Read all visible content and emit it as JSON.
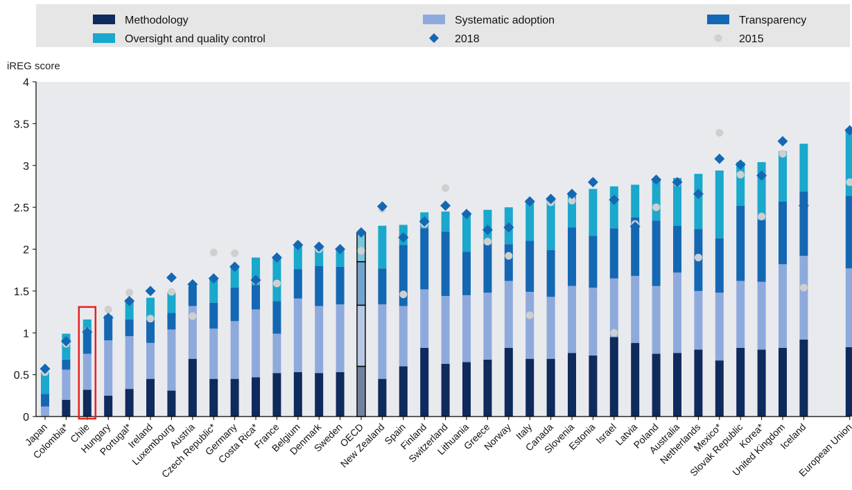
{
  "chart_data": {
    "type": "bar",
    "stacked": true,
    "ylabel": "iREG score",
    "ylim": [
      0,
      4
    ],
    "yticks": [
      0,
      0.5,
      1,
      1.5,
      2,
      2.5,
      3,
      3.5,
      4
    ],
    "ytick_labels": [
      "0",
      "0.5",
      "1",
      "1.5",
      "2",
      "2.5",
      "3",
      "3.5",
      "4"
    ],
    "grid": false,
    "legend_placement": "top",
    "categories": [
      "Japan",
      "Colombia*",
      "Chile",
      "Hungary",
      "Portugal*",
      "Ireland",
      "Luxembourg",
      "Austria",
      "Czech Republic*",
      "Germany",
      "Costa Rica*",
      "France",
      "Belgium",
      "Denmark",
      "Sweden",
      "OECD",
      "New Zealand",
      "Spain",
      "Finland",
      "Switzerland",
      "Lithuania",
      "Greece",
      "Norway",
      "Italy",
      "Canada",
      "Slovenia",
      "Estonia",
      "Israel",
      "Latvia",
      "Poland",
      "Australia",
      "Netherlands",
      "Mexico*",
      "Slovak Republic",
      "Korea*",
      "United Kingdom",
      "Iceland",
      "European Union"
    ],
    "highlighted_category": "Chile",
    "emphasized_category": "OECD",
    "series": [
      {
        "name": "Methodology",
        "color": "#0f2a5c",
        "values": [
          0.0,
          0.2,
          0.32,
          0.25,
          0.33,
          0.45,
          0.31,
          0.69,
          0.45,
          0.45,
          0.47,
          0.52,
          0.53,
          0.52,
          0.53,
          0.6,
          0.45,
          0.6,
          0.82,
          0.63,
          0.65,
          0.68,
          0.82,
          0.69,
          0.69,
          0.76,
          0.73,
          0.95,
          0.88,
          0.75,
          0.76,
          0.8,
          0.67,
          0.82,
          0.8,
          0.82,
          0.92,
          0.83
        ]
      },
      {
        "name": "Systematic adoption",
        "color": "#8eaadc",
        "values": [
          0.12,
          0.36,
          0.43,
          0.66,
          0.63,
          0.43,
          0.73,
          0.63,
          0.6,
          0.69,
          0.81,
          0.47,
          0.88,
          0.8,
          0.81,
          0.73,
          0.89,
          0.72,
          0.7,
          0.81,
          0.8,
          0.8,
          0.8,
          0.8,
          0.74,
          0.8,
          0.81,
          0.7,
          0.8,
          0.81,
          0.96,
          0.7,
          0.81,
          0.8,
          0.81,
          1.0,
          1.0,
          0.94
        ]
      },
      {
        "name": "Transparency",
        "color": "#1468b3",
        "values": [
          0.15,
          0.12,
          0.3,
          0.26,
          0.2,
          0.28,
          0.2,
          0.24,
          0.31,
          0.4,
          0.29,
          0.39,
          0.35,
          0.48,
          0.45,
          0.52,
          0.43,
          0.73,
          0.73,
          0.77,
          0.52,
          0.58,
          0.44,
          0.61,
          0.56,
          0.7,
          0.62,
          0.6,
          0.7,
          0.78,
          0.56,
          0.74,
          0.65,
          0.9,
          0.74,
          0.75,
          0.77,
          0.87
        ]
      },
      {
        "name": "Oversight and quality control",
        "color": "#1aa8cc",
        "values": [
          0.26,
          0.31,
          0.11,
          0.04,
          0.24,
          0.26,
          0.24,
          0.0,
          0.29,
          0.24,
          0.33,
          0.53,
          0.3,
          0.22,
          0.21,
          0.35,
          0.51,
          0.24,
          0.19,
          0.24,
          0.47,
          0.41,
          0.44,
          0.47,
          0.61,
          0.41,
          0.56,
          0.5,
          0.39,
          0.49,
          0.57,
          0.66,
          0.81,
          0.52,
          0.69,
          0.6,
          0.57,
          0.8
        ]
      }
    ],
    "markers": [
      {
        "name": "2018",
        "color": "#1468b3",
        "shape": "diamond",
        "values": [
          0.57,
          0.9,
          1.01,
          1.18,
          1.38,
          1.5,
          1.66,
          1.58,
          1.65,
          1.79,
          1.63,
          1.9,
          2.05,
          2.03,
          2.0,
          2.2,
          2.51,
          2.14,
          2.33,
          2.52,
          2.42,
          2.23,
          2.26,
          2.57,
          2.6,
          2.66,
          2.8,
          2.59,
          2.27,
          2.83,
          2.8,
          2.66,
          3.08,
          3.01,
          2.88,
          3.29,
          2.52,
          3.42
        ]
      },
      {
        "name": "2015",
        "color": "#cfcfcf",
        "shape": "circle",
        "values": [
          0.53,
          0.87,
          1.02,
          1.28,
          1.48,
          1.17,
          1.49,
          1.2,
          1.96,
          1.95,
          1.62,
          1.59,
          2.06,
          2.0,
          2.0,
          1.98,
          2.48,
          1.46,
          2.3,
          2.73,
          2.42,
          2.09,
          1.92,
          1.21,
          2.56,
          2.58,
          2.81,
          1.0,
          2.3,
          2.5,
          2.79,
          1.9,
          3.39,
          2.89,
          2.39,
          3.14,
          1.54,
          2.8
        ]
      }
    ],
    "legend": {
      "items": [
        {
          "label": "Methodology",
          "kind": "bar",
          "color": "#0f2a5c"
        },
        {
          "label": "Systematic adoption",
          "kind": "bar",
          "color": "#8eaadc"
        },
        {
          "label": "Transparency",
          "kind": "bar",
          "color": "#1468b3"
        },
        {
          "label": "Oversight and quality control",
          "kind": "bar",
          "color": "#1aa8cc"
        },
        {
          "label": "2018",
          "kind": "diamond",
          "color": "#1468b3"
        },
        {
          "label": "2015",
          "kind": "circle",
          "color": "#cfcfcf"
        }
      ]
    }
  }
}
